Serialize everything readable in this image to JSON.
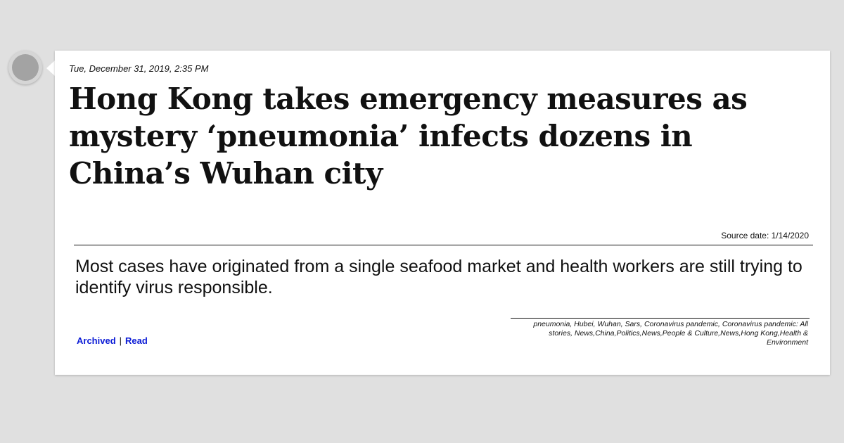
{
  "article": {
    "date": "Tue, December 31, 2019, 2:35 PM",
    "headline": "Hong Kong takes emergency measures as mystery ‘pneumonia’ infects dozens in China’s Wuhan city",
    "source_date": "Source date: 1/14/2020",
    "summary": "Most cases have originated from a single seafood market and health workers are still trying to identify virus responsible.",
    "tags": "pneumonia, Hubei, Wuhan, Sars, Coronavirus pandemic, Coronavirus pandemic: All stories, News,China,Politics,News,People & Culture,News,Hong Kong,Health & Environment"
  },
  "links": {
    "archived_label": "Archived",
    "separator": "|",
    "read_label": "Read"
  },
  "colors": {
    "background": "#e0e0e0",
    "card": "#ffffff",
    "link": "#0b1bd6",
    "timeline_dot": "#a3a3a3"
  }
}
